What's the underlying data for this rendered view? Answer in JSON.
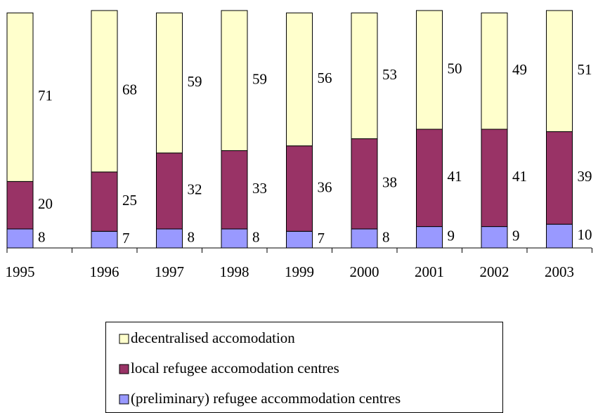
{
  "chart_data": {
    "type": "stacked_bar",
    "categories": [
      "1995",
      "1996",
      "1997",
      "1998",
      "1999",
      "2000",
      "2001",
      "2002",
      "2003"
    ],
    "series": [
      {
        "name": "decentralised accomodation",
        "color": "#ffffcc",
        "values": [
          71,
          68,
          59,
          59,
          56,
          53,
          50,
          49,
          51
        ]
      },
      {
        "name": "local refugee accomodation centres",
        "color": "#993366",
        "values": [
          20,
          25,
          32,
          33,
          36,
          38,
          41,
          41,
          39
        ]
      },
      {
        "name": "(preliminary) refugee accommodation centres",
        "color": "#9999ff",
        "values": [
          8,
          7,
          8,
          8,
          7,
          8,
          9,
          9,
          10
        ]
      }
    ]
  }
}
